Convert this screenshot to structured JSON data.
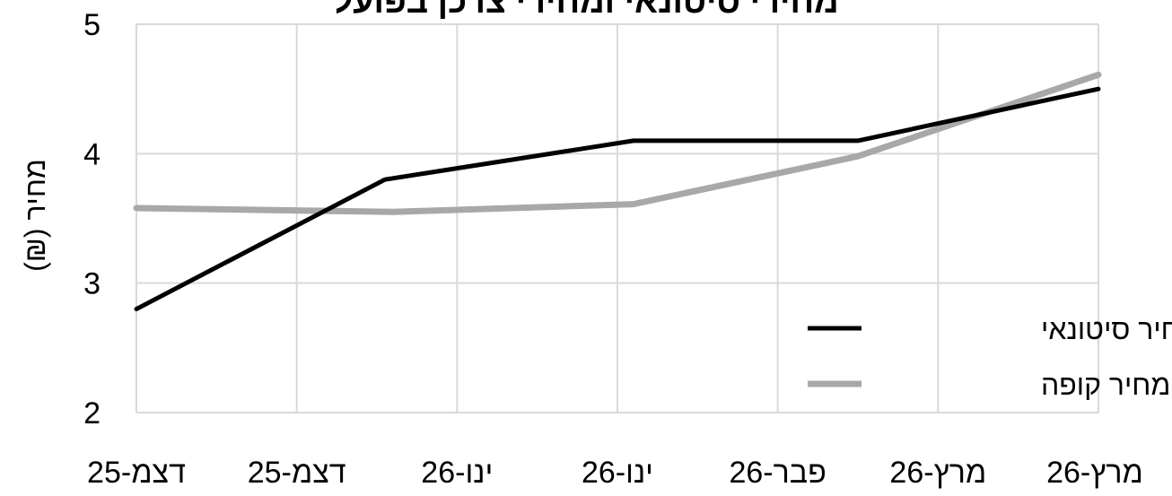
{
  "chart_data": {
    "type": "line",
    "title": "מחירי סיטונאי ומחירי צרכן בפועל",
    "ylabel": "מחיר (₪)",
    "xlabel": "",
    "ylim": [
      2,
      5
    ],
    "yticks": [
      2,
      3,
      4,
      5
    ],
    "x_tick_labels": [
      "דצמ-25",
      "דצמ-25",
      "ינו-26",
      "ינו-26",
      "פבר-26",
      "מרץ-26",
      "מרץ-26"
    ],
    "grid": true,
    "legend_position": "bottom-right",
    "series": [
      {
        "name": "מחיר סיטונאי",
        "color": "#000000",
        "points": [
          [
            0,
            2.8
          ],
          [
            1.55,
            3.8
          ],
          [
            3.1,
            4.1
          ],
          [
            4.5,
            4.1
          ],
          [
            6,
            4.5
          ]
        ]
      },
      {
        "name": "מחיר קופה",
        "color": "#a8a8a8",
        "points": [
          [
            0,
            3.58
          ],
          [
            1.6,
            3.55
          ],
          [
            3.1,
            3.61
          ],
          [
            4.5,
            3.98
          ],
          [
            6,
            4.61
          ]
        ]
      }
    ]
  }
}
